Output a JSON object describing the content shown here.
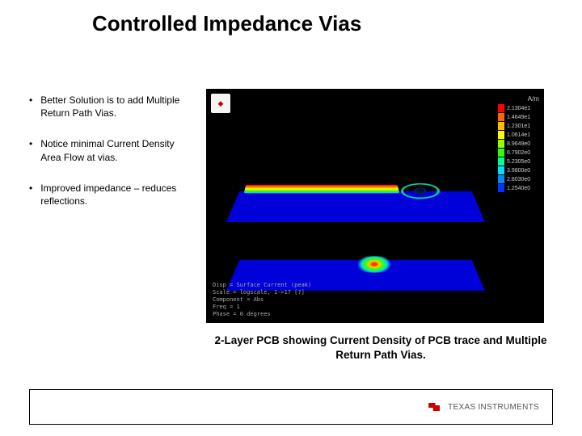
{
  "title": "Controlled Impedance Vias",
  "bullets": [
    "Better Solution is to add Multiple Return Path Vias.",
    "Notice minimal Current Density Area Flow at vias.",
    "Improved impedance – reduces reflections."
  ],
  "caption": "2-Layer PCB showing Current Density of PCB trace and Multiple Return Path Vias.",
  "footer_logo_text": "TEXAS INSTRUMENTS",
  "simulation": {
    "background_color": "#000000",
    "plane_color": "#0000d8",
    "legend_unit": "A/m",
    "legend": [
      {
        "color": "#ff0000",
        "value": "2.1304e1"
      },
      {
        "color": "#ff6600",
        "value": "1.4649e1"
      },
      {
        "color": "#ffbb00",
        "value": "1.2301e1"
      },
      {
        "color": "#ffff00",
        "value": "1.0614e1"
      },
      {
        "color": "#99ff00",
        "value": "8.9649e0"
      },
      {
        "color": "#33ff00",
        "value": "6.7902e0"
      },
      {
        "color": "#00ff99",
        "value": "5.2305e0"
      },
      {
        "color": "#00e0ff",
        "value": "3.9800e0"
      },
      {
        "color": "#0088ff",
        "value": "2.8030e0"
      },
      {
        "color": "#0033ff",
        "value": "1.2540e0"
      }
    ],
    "meta_lines": [
      "Disp   = Surface Current (peak)",
      "Scale  = logscale, 1->17 [?]",
      "Component = Abs",
      "Freq   = 1",
      "Phase  = 0 degrees"
    ]
  }
}
